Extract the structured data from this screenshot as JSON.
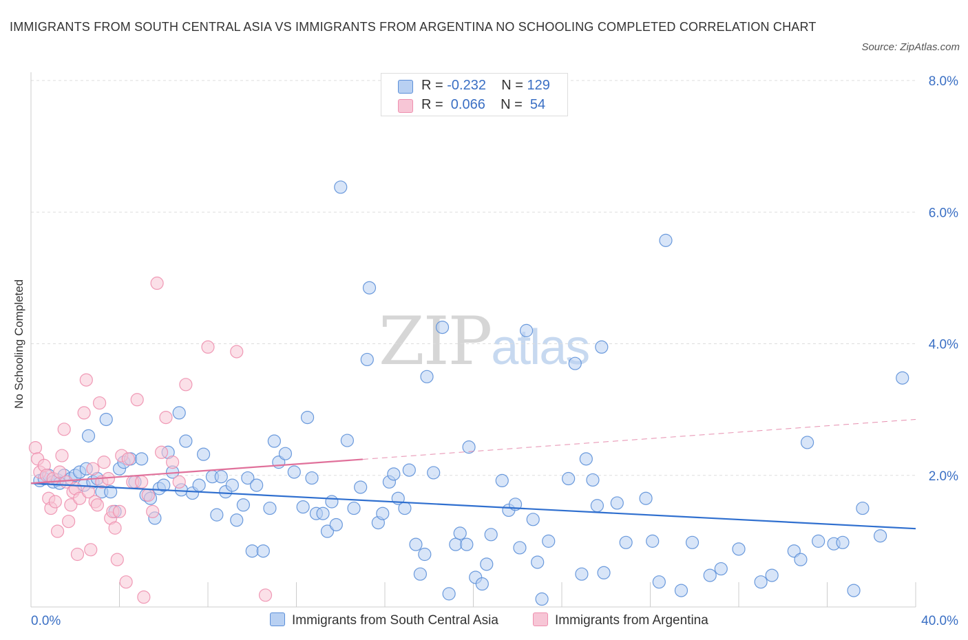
{
  "title": "IMMIGRANTS FROM SOUTH CENTRAL ASIA VS IMMIGRANTS FROM ARGENTINA NO SCHOOLING COMPLETED CORRELATION CHART",
  "source": "Source: ZipAtlas.com",
  "watermark": {
    "zip": "ZIP",
    "atlas": "atlas"
  },
  "legend": {
    "rows": [
      {
        "r_label": "R = ",
        "r_value": "-0.232",
        "n_label": "N = ",
        "n_value": "129"
      },
      {
        "r_label": "R = ",
        "r_value": " 0.066",
        "n_label": "N = ",
        "n_value": " 54"
      }
    ]
  },
  "colors": {
    "blue": "#5b8fd8",
    "blue_fill": "#b8d0f2",
    "blue_line": "#2f6fcf",
    "pink": "#ee8fae",
    "pink_fill": "#f7c6d6",
    "pink_line": "#e0709a",
    "grid": "#dddddd",
    "tick_label": "#3a6fc4"
  },
  "chart_data": {
    "type": "scatter",
    "xlabel": "",
    "ylabel": "No Schooling Completed",
    "xlim": [
      0,
      40
    ],
    "ylim": [
      0,
      8
    ],
    "x_tick_labels": [
      {
        "v": 0,
        "label": "0.0%"
      },
      {
        "v": 40,
        "label": "40.0%"
      }
    ],
    "y_tick_labels": [
      {
        "v": 2,
        "label": "2.0%"
      },
      {
        "v": 4,
        "label": "4.0%"
      },
      {
        "v": 6,
        "label": "6.0%"
      },
      {
        "v": 8,
        "label": "8.0%"
      }
    ],
    "legend_position": "top-center",
    "series": [
      {
        "name": "Immigrants from South Central Asia",
        "color": "blue",
        "r": -0.232,
        "n": 129,
        "trend": {
          "x": [
            0,
            40
          ],
          "y": [
            1.88,
            1.19
          ],
          "dashed_from": null
        },
        "points": [
          [
            0.4,
            1.92
          ],
          [
            0.6,
            1.95
          ],
          [
            0.8,
            2.0
          ],
          [
            1.0,
            1.9
          ],
          [
            1.2,
            1.93
          ],
          [
            1.5,
            2.0
          ],
          [
            1.8,
            1.95
          ],
          [
            2.0,
            2.0
          ],
          [
            2.2,
            2.05
          ],
          [
            2.4,
            1.85
          ],
          [
            2.5,
            2.1
          ],
          [
            2.6,
            2.6
          ],
          [
            2.8,
            1.9
          ],
          [
            3.0,
            1.95
          ],
          [
            3.2,
            1.75
          ],
          [
            3.4,
            2.85
          ],
          [
            3.6,
            1.75
          ],
          [
            3.8,
            1.45
          ],
          [
            4.0,
            2.1
          ],
          [
            4.2,
            2.2
          ],
          [
            4.5,
            2.25
          ],
          [
            4.7,
            1.9
          ],
          [
            5.0,
            2.25
          ],
          [
            5.2,
            1.7
          ],
          [
            5.4,
            1.65
          ],
          [
            5.6,
            1.35
          ],
          [
            5.8,
            1.8
          ],
          [
            6.0,
            1.85
          ],
          [
            6.2,
            2.35
          ],
          [
            6.4,
            2.05
          ],
          [
            6.7,
            2.95
          ],
          [
            6.8,
            1.78
          ],
          [
            7.0,
            2.52
          ],
          [
            7.3,
            1.73
          ],
          [
            7.6,
            1.85
          ],
          [
            7.8,
            2.32
          ],
          [
            8.2,
            1.98
          ],
          [
            8.4,
            1.4
          ],
          [
            8.6,
            1.98
          ],
          [
            8.8,
            1.75
          ],
          [
            9.1,
            1.85
          ],
          [
            9.3,
            1.32
          ],
          [
            9.6,
            1.55
          ],
          [
            9.8,
            1.96
          ],
          [
            10.0,
            0.85
          ],
          [
            10.2,
            1.85
          ],
          [
            10.5,
            0.85
          ],
          [
            10.8,
            1.5
          ],
          [
            11.0,
            2.52
          ],
          [
            11.2,
            2.2
          ],
          [
            11.5,
            2.33
          ],
          [
            11.9,
            2.05
          ],
          [
            12.3,
            1.52
          ],
          [
            12.5,
            2.88
          ],
          [
            12.7,
            1.96
          ],
          [
            12.9,
            1.42
          ],
          [
            13.2,
            1.42
          ],
          [
            13.4,
            1.15
          ],
          [
            13.6,
            1.6
          ],
          [
            13.8,
            1.25
          ],
          [
            14.0,
            6.38
          ],
          [
            14.3,
            2.53
          ],
          [
            14.6,
            1.5
          ],
          [
            14.9,
            1.82
          ],
          [
            15.2,
            3.76
          ],
          [
            15.3,
            4.85
          ],
          [
            15.7,
            1.28
          ],
          [
            15.9,
            1.42
          ],
          [
            16.2,
            1.9
          ],
          [
            16.4,
            2.02
          ],
          [
            16.6,
            1.65
          ],
          [
            16.9,
            1.5
          ],
          [
            17.1,
            2.08
          ],
          [
            17.4,
            0.95
          ],
          [
            17.6,
            0.5
          ],
          [
            17.8,
            0.8
          ],
          [
            17.9,
            3.5
          ],
          [
            18.2,
            2.04
          ],
          [
            18.6,
            4.25
          ],
          [
            18.9,
            0.2
          ],
          [
            19.2,
            0.95
          ],
          [
            19.4,
            1.12
          ],
          [
            19.7,
            0.95
          ],
          [
            19.8,
            2.43
          ],
          [
            20.1,
            0.45
          ],
          [
            20.4,
            0.35
          ],
          [
            20.6,
            0.65
          ],
          [
            20.8,
            1.1
          ],
          [
            21.3,
            1.92
          ],
          [
            21.6,
            1.47
          ],
          [
            21.9,
            1.56
          ],
          [
            22.1,
            0.9
          ],
          [
            22.4,
            4.2
          ],
          [
            22.7,
            1.33
          ],
          [
            22.9,
            0.68
          ],
          [
            23.1,
            0.12
          ],
          [
            23.4,
            1.0
          ],
          [
            24.3,
            1.95
          ],
          [
            24.6,
            3.7
          ],
          [
            24.9,
            0.5
          ],
          [
            25.1,
            2.25
          ],
          [
            25.4,
            1.93
          ],
          [
            25.6,
            1.54
          ],
          [
            25.8,
            3.95
          ],
          [
            25.9,
            0.52
          ],
          [
            26.5,
            1.58
          ],
          [
            26.9,
            0.98
          ],
          [
            27.8,
            1.65
          ],
          [
            28.1,
            1.0
          ],
          [
            28.4,
            0.38
          ],
          [
            28.7,
            5.57
          ],
          [
            29.4,
            0.25
          ],
          [
            29.9,
            0.98
          ],
          [
            30.7,
            0.48
          ],
          [
            31.2,
            0.58
          ],
          [
            32.0,
            0.88
          ],
          [
            33.0,
            0.38
          ],
          [
            33.5,
            0.48
          ],
          [
            34.5,
            0.85
          ],
          [
            34.8,
            0.72
          ],
          [
            35.1,
            2.5
          ],
          [
            35.6,
            1.0
          ],
          [
            36.3,
            0.96
          ],
          [
            36.7,
            0.98
          ],
          [
            37.2,
            0.25
          ],
          [
            37.6,
            1.5
          ],
          [
            38.4,
            1.08
          ],
          [
            39.4,
            3.48
          ],
          [
            1.3,
            1.88
          ]
        ]
      },
      {
        "name": "Immigrants from Argentina",
        "color": "pink",
        "r": 0.066,
        "n": 54,
        "trend": {
          "x": [
            0,
            40
          ],
          "y": [
            1.88,
            2.85
          ],
          "dashed_from": 15.0
        },
        "points": [
          [
            0.2,
            2.42
          ],
          [
            0.3,
            2.25
          ],
          [
            0.4,
            2.05
          ],
          [
            0.6,
            2.15
          ],
          [
            0.7,
            2.0
          ],
          [
            0.8,
            1.65
          ],
          [
            0.9,
            1.5
          ],
          [
            1.0,
            1.95
          ],
          [
            1.1,
            1.6
          ],
          [
            1.2,
            1.15
          ],
          [
            1.3,
            2.05
          ],
          [
            1.4,
            2.3
          ],
          [
            1.5,
            2.7
          ],
          [
            1.6,
            1.9
          ],
          [
            1.7,
            1.3
          ],
          [
            1.8,
            1.55
          ],
          [
            1.9,
            1.75
          ],
          [
            2.0,
            1.8
          ],
          [
            2.1,
            0.8
          ],
          [
            2.2,
            1.65
          ],
          [
            2.4,
            2.95
          ],
          [
            2.5,
            3.45
          ],
          [
            2.6,
            1.75
          ],
          [
            2.7,
            0.87
          ],
          [
            2.8,
            2.1
          ],
          [
            2.9,
            1.6
          ],
          [
            3.0,
            1.55
          ],
          [
            3.1,
            3.1
          ],
          [
            3.2,
            1.9
          ],
          [
            3.3,
            2.2
          ],
          [
            3.5,
            1.95
          ],
          [
            3.6,
            1.35
          ],
          [
            3.7,
            1.45
          ],
          [
            3.8,
            1.2
          ],
          [
            3.9,
            0.72
          ],
          [
            4.0,
            1.45
          ],
          [
            4.1,
            2.3
          ],
          [
            4.3,
            0.38
          ],
          [
            4.4,
            2.25
          ],
          [
            4.6,
            1.9
          ],
          [
            4.8,
            3.15
          ],
          [
            5.0,
            1.9
          ],
          [
            5.1,
            0.15
          ],
          [
            5.3,
            1.7
          ],
          [
            5.5,
            1.45
          ],
          [
            5.7,
            4.92
          ],
          [
            5.9,
            2.35
          ],
          [
            6.1,
            2.88
          ],
          [
            6.4,
            2.2
          ],
          [
            6.7,
            1.9
          ],
          [
            7.0,
            3.38
          ],
          [
            8.0,
            3.95
          ],
          [
            9.3,
            3.88
          ],
          [
            10.6,
            0.18
          ]
        ]
      }
    ]
  },
  "bottom_legend": [
    {
      "label": "Immigrants from South Central Asia",
      "color": "blue"
    },
    {
      "label": "Immigrants from Argentina",
      "color": "pink"
    }
  ]
}
